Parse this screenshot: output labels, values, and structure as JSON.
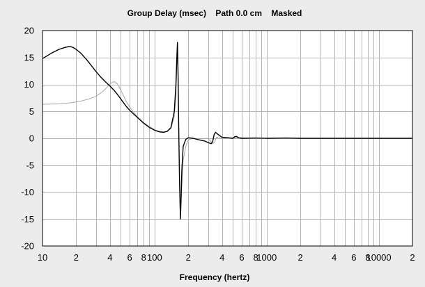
{
  "chart_data": {
    "type": "line",
    "title": "Group Delay (msec)    Path 0.0 cm    Masked",
    "xlabel": "Frequency (hertz)",
    "ylabel": "",
    "x_scale": "log",
    "xlim": [
      10,
      20000
    ],
    "ylim": [
      -20,
      20
    ],
    "grid": true,
    "legend": "none",
    "x_tick_labels": [
      {
        "v": 10,
        "t": "10"
      },
      {
        "v": 20,
        "t": "2"
      },
      {
        "v": 40,
        "t": "4"
      },
      {
        "v": 60,
        "t": "6"
      },
      {
        "v": 80,
        "t": "8"
      },
      {
        "v": 100,
        "t": "100"
      },
      {
        "v": 200,
        "t": "2"
      },
      {
        "v": 400,
        "t": "4"
      },
      {
        "v": 600,
        "t": "6"
      },
      {
        "v": 800,
        "t": "8"
      },
      {
        "v": 1000,
        "t": "1000"
      },
      {
        "v": 2000,
        "t": "2"
      },
      {
        "v": 4000,
        "t": "4"
      },
      {
        "v": 6000,
        "t": "6"
      },
      {
        "v": 8000,
        "t": "8"
      },
      {
        "v": 10000,
        "t": "10000"
      },
      {
        "v": 20000,
        "t": "2"
      }
    ],
    "y_ticks": [
      20,
      15,
      10,
      5,
      0,
      -5,
      -10,
      -15,
      -20
    ],
    "colors": {
      "grid": "#b4b4b4",
      "main": "#000000",
      "secondary": "#a8a8a8",
      "plot_bg": "#ffffff",
      "page_bg": "#ececec"
    },
    "series": [
      {
        "color": "#a8a8a8",
        "x": [
          10,
          14,
          18,
          22,
          26,
          30,
          34,
          37,
          40,
          42,
          44,
          46,
          48,
          52,
          56,
          60,
          70,
          80,
          90,
          100,
          110,
          120,
          130,
          140,
          150,
          155,
          158,
          160,
          163,
          166,
          170,
          175,
          180,
          190,
          200,
          220,
          250,
          300,
          330,
          340,
          360,
          400,
          500,
          600,
          700,
          1000,
          2000,
          4000,
          10000,
          20000
        ],
        "y": [
          6.3,
          6.4,
          6.6,
          6.9,
          7.3,
          7.8,
          8.6,
          9.3,
          10.1,
          10.4,
          10.5,
          10.2,
          9.6,
          8.2,
          6.8,
          5.8,
          4.0,
          2.9,
          2.2,
          1.6,
          1.3,
          1.2,
          1.3,
          1.8,
          4.0,
          8.0,
          13.0,
          17.0,
          9.0,
          -5.0,
          -14.0,
          -9.0,
          -4.0,
          -1.5,
          -0.3,
          0.0,
          -0.1,
          0.0,
          -1.0,
          -0.8,
          0.2,
          0.0,
          0.1,
          0.1,
          0.0,
          0.0,
          0.0,
          0.0,
          0.0,
          0.0
        ]
      },
      {
        "color": "#000000",
        "x": [
          10,
          12,
          14,
          16,
          17,
          18,
          19,
          20,
          22,
          25,
          28,
          30,
          33,
          36,
          40,
          44,
          48,
          52,
          56,
          60,
          70,
          80,
          90,
          100,
          110,
          120,
          130,
          140,
          150,
          155,
          158,
          160,
          162,
          164,
          167,
          170,
          172,
          175,
          180,
          190,
          200,
          220,
          250,
          280,
          300,
          320,
          330,
          340,
          350,
          380,
          400,
          450,
          500,
          520,
          540,
          560,
          600,
          800,
          1000,
          1500,
          2000,
          3000,
          5000,
          10000,
          20000
        ],
        "y": [
          14.8,
          15.8,
          16.5,
          16.9,
          17.0,
          17.0,
          16.8,
          16.5,
          15.8,
          14.5,
          13.2,
          12.4,
          11.4,
          10.6,
          9.7,
          8.8,
          7.8,
          6.8,
          5.9,
          5.2,
          3.9,
          2.8,
          2.0,
          1.5,
          1.2,
          1.1,
          1.3,
          2.0,
          5.0,
          10.0,
          15.0,
          17.8,
          12.0,
          3.0,
          -8.0,
          -15.0,
          -12.0,
          -6.0,
          -1.5,
          -0.2,
          0.1,
          0.0,
          -0.3,
          -0.5,
          -0.8,
          -1.0,
          -0.6,
          0.7,
          1.1,
          0.5,
          0.2,
          0.1,
          0.0,
          0.3,
          0.35,
          0.1,
          0.0,
          0.05,
          0.0,
          0.05,
          0.0,
          0.0,
          0.0,
          0.0,
          0.0
        ]
      }
    ]
  }
}
